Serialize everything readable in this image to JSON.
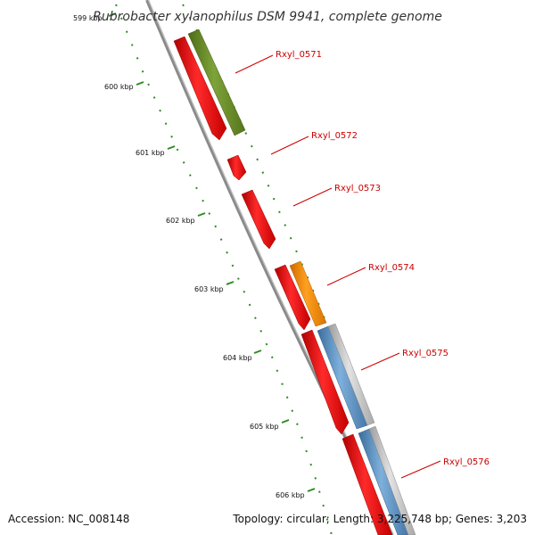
{
  "title": "Rubrobacter xylanophilus DSM 9941, complete genome",
  "footer": {
    "accession": "Accession: NC_008148",
    "topology": "Topology: circular; Length: 3,225,748 bp; Genes: 3,203"
  },
  "colors": {
    "backbone": "#8a8a8a",
    "tick": "#2e8b22",
    "label": "#cc0000",
    "cds": "#ee0000",
    "gene_olive": "#6b8e23",
    "gene_orange": "#ff8c00",
    "gene_gray": "#c0c0c0",
    "gene_blue": "#4f86b8"
  },
  "ticks": [
    {
      "kbp": 599,
      "label": "599 kbp"
    },
    {
      "kbp": 600,
      "label": "600 kbp"
    },
    {
      "kbp": 601,
      "label": "601 kbp"
    },
    {
      "kbp": 602,
      "label": "602 kbp"
    },
    {
      "kbp": 603,
      "label": "603 kbp"
    },
    {
      "kbp": 604,
      "label": "604 kbp"
    },
    {
      "kbp": 605,
      "label": "605 kbp"
    },
    {
      "kbp": 606,
      "label": "606 kbp"
    }
  ],
  "genes": [
    {
      "id": "Rxyl_0571",
      "label": "Rxyl_0571"
    },
    {
      "id": "Rxyl_0572",
      "label": "Rxyl_0572"
    },
    {
      "id": "Rxyl_0573",
      "label": "Rxyl_0573"
    },
    {
      "id": "Rxyl_0574",
      "label": "Rxyl_0574"
    },
    {
      "id": "Rxyl_0575",
      "label": "Rxyl_0575"
    },
    {
      "id": "Rxyl_0576",
      "label": "Rxyl_0576"
    }
  ]
}
